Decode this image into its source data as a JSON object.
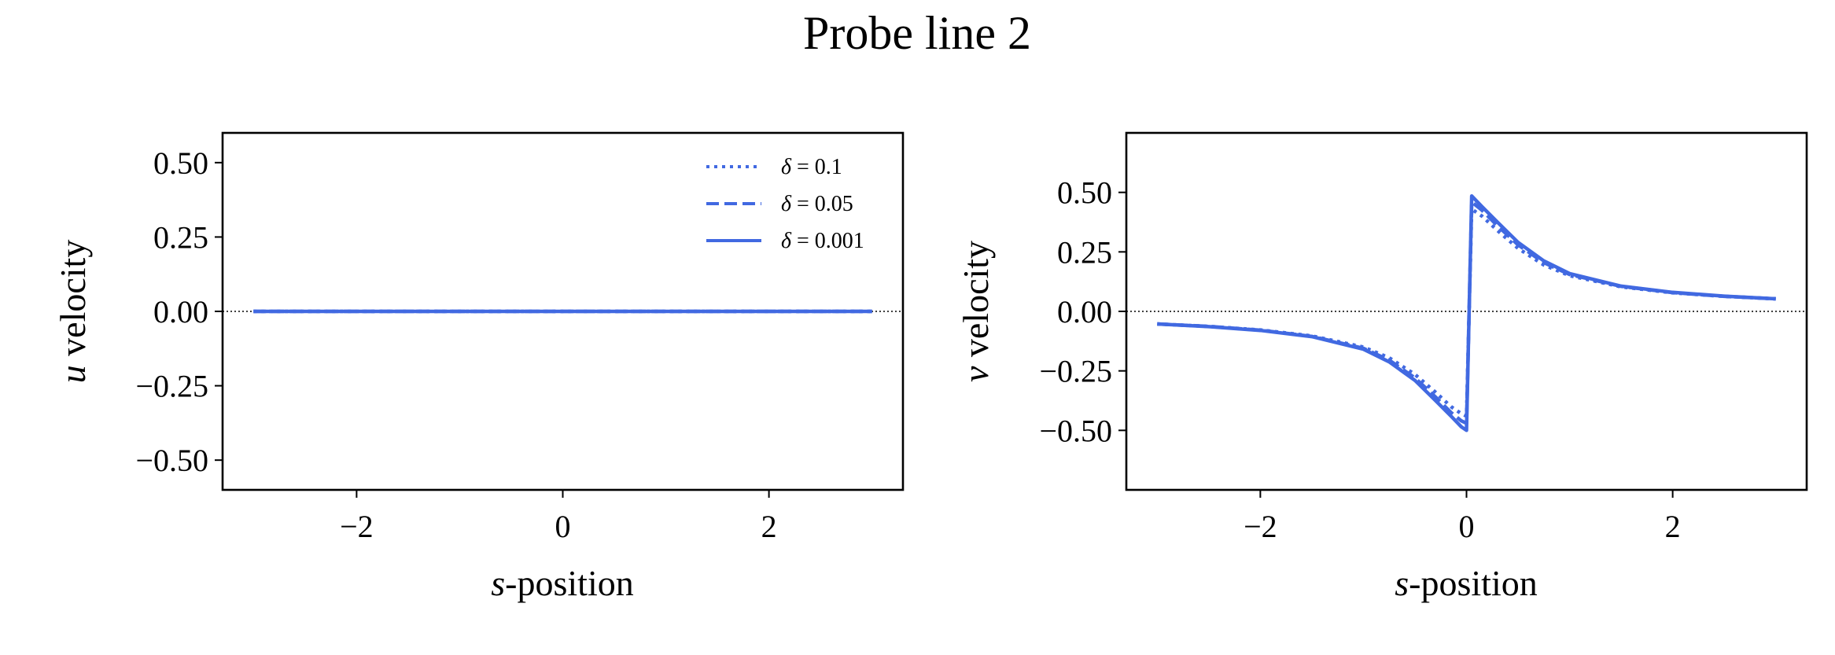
{
  "figure": {
    "title": "Probe line 2"
  },
  "colors": {
    "series": "#4169e1",
    "axis": "#000000",
    "background": "#ffffff"
  },
  "chart_data": [
    {
      "type": "line",
      "title": "",
      "xlabel_italic": "s",
      "xlabel_rest": "-position",
      "ylabel_italic": "u",
      "ylabel_rest": " velocity",
      "xlim": [
        -3.3,
        3.3
      ],
      "ylim": [
        -0.6,
        0.6
      ],
      "xticks": [
        -2,
        0,
        2
      ],
      "xtick_labels": [
        "−2",
        "0",
        "2"
      ],
      "yticks": [
        0.5,
        0.25,
        0.0,
        -0.25,
        -0.5
      ],
      "ytick_labels": [
        "0.50",
        "0.25",
        "0.00",
        "−0.25",
        "−0.50"
      ],
      "reference_line": {
        "y": 0,
        "style": "dotted"
      },
      "legend": {
        "position": "top-right",
        "entries": [
          {
            "symbol": "δ",
            "text": " = 0.1",
            "style": "dotted"
          },
          {
            "symbol": "δ",
            "text": " = 0.05",
            "style": "dashed"
          },
          {
            "symbol": "δ",
            "text": " = 0.001",
            "style": "solid"
          }
        ]
      },
      "series": [
        {
          "name": "δ = 0.1",
          "style": "dotted",
          "x": [
            -3,
            -2,
            -1,
            0,
            1,
            2,
            3
          ],
          "y": [
            0,
            0,
            0,
            0,
            0,
            0,
            0
          ]
        },
        {
          "name": "δ = 0.05",
          "style": "dashed",
          "x": [
            -3,
            -2,
            -1,
            0,
            1,
            2,
            3
          ],
          "y": [
            0,
            0,
            0,
            0,
            0,
            0,
            0
          ]
        },
        {
          "name": "δ = 0.001",
          "style": "solid",
          "x": [
            -3,
            -2,
            -1,
            0,
            1,
            2,
            3
          ],
          "y": [
            0,
            0,
            0,
            0,
            0,
            0,
            0
          ]
        }
      ]
    },
    {
      "type": "line",
      "title": "",
      "xlabel_italic": "s",
      "xlabel_rest": "-position",
      "ylabel_italic": "v",
      "ylabel_rest": " velocity",
      "xlim": [
        -3.3,
        3.3
      ],
      "ylim": [
        -0.75,
        0.75
      ],
      "xticks": [
        -2,
        0,
        2
      ],
      "xtick_labels": [
        "−2",
        "0",
        "2"
      ],
      "yticks": [
        0.5,
        0.25,
        0.0,
        -0.25,
        -0.5
      ],
      "ytick_labels": [
        "0.50",
        "0.25",
        "0.00",
        "−0.25",
        "−0.50"
      ],
      "reference_line": {
        "y": 0,
        "style": "dotted"
      },
      "series": [
        {
          "name": "δ = 0.1",
          "style": "dotted",
          "x": [
            -3,
            -2.5,
            -2,
            -1.5,
            -1,
            -0.75,
            -0.5,
            -0.3,
            -0.15,
            -0.05,
            0,
            0.05,
            0.15,
            0.3,
            0.5,
            0.75,
            1,
            1.5,
            2,
            2.5,
            3
          ],
          "y": [
            -0.053,
            -0.063,
            -0.078,
            -0.103,
            -0.15,
            -0.195,
            -0.265,
            -0.34,
            -0.4,
            -0.43,
            -0.44,
            0.43,
            0.4,
            0.34,
            0.265,
            0.195,
            0.15,
            0.103,
            0.078,
            0.063,
            0.053
          ]
        },
        {
          "name": "δ = 0.05",
          "style": "dashed",
          "x": [
            -3,
            -2.5,
            -2,
            -1.5,
            -1,
            -0.75,
            -0.5,
            -0.3,
            -0.15,
            -0.05,
            0,
            0.05,
            0.15,
            0.3,
            0.5,
            0.75,
            1,
            1.5,
            2,
            2.5,
            3
          ],
          "y": [
            -0.053,
            -0.063,
            -0.079,
            -0.105,
            -0.155,
            -0.205,
            -0.28,
            -0.36,
            -0.425,
            -0.46,
            -0.47,
            0.46,
            0.425,
            0.36,
            0.28,
            0.205,
            0.155,
            0.105,
            0.079,
            0.063,
            0.053
          ]
        },
        {
          "name": "δ = 0.001",
          "style": "solid",
          "x": [
            -3,
            -2.5,
            -2,
            -1.5,
            -1,
            -0.75,
            -0.5,
            -0.3,
            -0.15,
            -0.05,
            0,
            0.05,
            0.15,
            0.3,
            0.5,
            0.75,
            1,
            1.5,
            2,
            2.5,
            3
          ],
          "y": [
            -0.053,
            -0.064,
            -0.08,
            -0.106,
            -0.159,
            -0.212,
            -0.29,
            -0.375,
            -0.44,
            -0.485,
            -0.5,
            0.485,
            0.44,
            0.375,
            0.29,
            0.212,
            0.159,
            0.106,
            0.08,
            0.064,
            0.053
          ]
        }
      ]
    }
  ]
}
